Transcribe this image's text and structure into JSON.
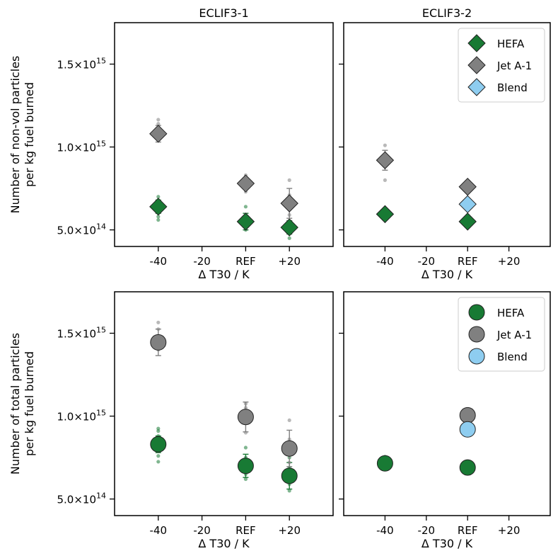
{
  "chart_data": {
    "type": "scatter",
    "x_tick_labels": [
      "-40",
      "-20",
      "REF",
      "+20"
    ],
    "x_tick_values": [
      -40,
      -20,
      0,
      20
    ],
    "xlim": [
      -60,
      40
    ],
    "ylim": [
      400000000000000.0,
      1750000000000000.0
    ],
    "y_ticks": [
      {
        "value": 500000000000000.0,
        "mant": "5.0",
        "exp": "14"
      },
      {
        "value": 1000000000000000.0,
        "mant": "1.0",
        "exp": "15"
      },
      {
        "value": 1500000000000000.0,
        "mant": "1.5",
        "exp": "15"
      }
    ],
    "x_times": "×",
    "x_base": "10",
    "column_titles": [
      "ECLIF3-1",
      "ECLIF3-2"
    ],
    "xlabel": "Δ T30 / K",
    "ylabels": [
      [
        "Number of non-vol particles",
        "per kg fuel burned"
      ],
      [
        "Number of total particles",
        "per kg fuel burned"
      ]
    ],
    "legend": {
      "placement": "top-right",
      "entries": [
        {
          "name": "HEFA",
          "color": "#187a34"
        },
        {
          "name": "Jet A-1",
          "color": "#808080"
        },
        {
          "name": "Blend",
          "color": "#8ecdf0"
        }
      ]
    },
    "panels": [
      {
        "row": 0,
        "col": 0,
        "marker": "diamond",
        "series": [
          {
            "name": "HEFA",
            "color": "#187a34",
            "points": [
              {
                "x": -40,
                "y": 640000000000000.0,
                "err": 40000000000000.0
              },
              {
                "x": 0,
                "y": 550000000000000.0,
                "err": 50000000000000.0
              },
              {
                "x": 20,
                "y": 515000000000000.0,
                "err": 40000000000000.0
              }
            ],
            "raw": [
              {
                "x": -40,
                "y": [
                  560000000000000.0,
                  580000000000000.0,
                  670000000000000.0,
                  700000000000000.0
                ]
              },
              {
                "x": 0,
                "y": [
                  500000000000000.0,
                  570000000000000.0,
                  640000000000000.0
                ]
              },
              {
                "x": 20,
                "y": [
                  450000000000000.0,
                  480000000000000.0,
                  550000000000000.0
                ]
              }
            ]
          },
          {
            "name": "Jet A-1",
            "color": "#808080",
            "points": [
              {
                "x": -40,
                "y": 1080000000000000.0,
                "err": 50000000000000.0
              },
              {
                "x": 0,
                "y": 780000000000000.0,
                "err": 30000000000000.0
              },
              {
                "x": 20,
                "y": 660000000000000.0,
                "err": 90000000000000.0
              }
            ],
            "raw": [
              {
                "x": -40,
                "y": [
                  1060000000000000.0,
                  1140000000000000.0,
                  1165000000000000.0
                ]
              },
              {
                "x": 0,
                "y": [
                  730000000000000.0,
                  830000000000000.0
                ]
              },
              {
                "x": 20,
                "y": [
                  590000000000000.0,
                  710000000000000.0,
                  800000000000000.0
                ]
              }
            ]
          }
        ]
      },
      {
        "row": 0,
        "col": 1,
        "marker": "diamond",
        "legend": true,
        "series": [
          {
            "name": "HEFA",
            "color": "#187a34",
            "points": [
              {
                "x": -40,
                "y": 595000000000000.0,
                "err": 0
              },
              {
                "x": 0,
                "y": 550000000000000.0,
                "err": 0
              }
            ],
            "raw": []
          },
          {
            "name": "Jet A-1",
            "color": "#808080",
            "points": [
              {
                "x": -40,
                "y": 920000000000000.0,
                "err": 60000000000000.0
              },
              {
                "x": 0,
                "y": 760000000000000.0,
                "err": 0
              }
            ],
            "raw": [
              {
                "x": -40,
                "y": [
                  800000000000000.0,
                  1010000000000000.0
                ]
              }
            ]
          },
          {
            "name": "Blend",
            "color": "#8ecdf0",
            "points": [
              {
                "x": 0,
                "y": 655000000000000.0,
                "err": 0
              }
            ],
            "raw": []
          }
        ]
      },
      {
        "row": 1,
        "col": 0,
        "marker": "circle",
        "series": [
          {
            "name": "HEFA",
            "color": "#187a34",
            "points": [
              {
                "x": -40,
                "y": 830000000000000.0,
                "err": 50000000000000.0
              },
              {
                "x": 0,
                "y": 700000000000000.0,
                "err": 70000000000000.0
              },
              {
                "x": 20,
                "y": 640000000000000.0,
                "err": 80000000000000.0
              }
            ],
            "raw": [
              {
                "x": -40,
                "y": [
                  725000000000000.0,
                  760000000000000.0,
                  880000000000000.0,
                  910000000000000.0,
                  925000000000000.0
                ]
              },
              {
                "x": 0,
                "y": [
                  620000000000000.0,
                  650000000000000.0,
                  750000000000000.0,
                  810000000000000.0
                ]
              },
              {
                "x": 20,
                "y": [
                  550000000000000.0,
                  590000000000000.0,
                  690000000000000.0,
                  750000000000000.0
                ]
              }
            ]
          },
          {
            "name": "Jet A-1",
            "color": "#808080",
            "points": [
              {
                "x": -40,
                "y": 1445000000000000.0,
                "err": 80000000000000.0
              },
              {
                "x": 0,
                "y": 995000000000000.0,
                "err": 90000000000000.0
              },
              {
                "x": 20,
                "y": 805000000000000.0,
                "err": 110000000000000.0
              }
            ],
            "raw": [
              {
                "x": -40,
                "y": [
                  1400000000000000.0,
                  1525000000000000.0,
                  1565000000000000.0
                ]
              },
              {
                "x": 0,
                "y": [
                  900000000000000.0,
                  1050000000000000.0,
                  1075000000000000.0
                ]
              },
              {
                "x": 20,
                "y": [
                  720000000000000.0,
                  860000000000000.0,
                  975000000000000.0
                ]
              }
            ]
          }
        ]
      },
      {
        "row": 1,
        "col": 1,
        "marker": "circle",
        "legend": true,
        "series": [
          {
            "name": "HEFA",
            "color": "#187a34",
            "points": [
              {
                "x": -40,
                "y": 715000000000000.0,
                "err": 0
              },
              {
                "x": 0,
                "y": 690000000000000.0,
                "err": 0
              }
            ],
            "raw": [
              {
                "x": -40,
                "y": [
                  755000000000000.0
                ]
              }
            ]
          },
          {
            "name": "Jet A-1",
            "color": "#808080",
            "points": [
              {
                "x": 0,
                "y": 1005000000000000.0,
                "err": 0
              }
            ],
            "raw": []
          },
          {
            "name": "Blend",
            "color": "#8ecdf0",
            "points": [
              {
                "x": 0,
                "y": 920000000000000.0,
                "err": 0
              }
            ],
            "raw": []
          }
        ]
      }
    ]
  }
}
